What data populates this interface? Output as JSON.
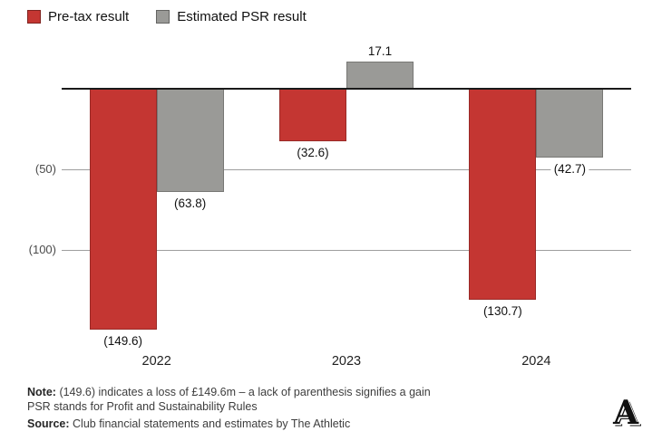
{
  "chart_data": {
    "type": "bar",
    "categories": [
      "2022",
      "2023",
      "2024"
    ],
    "series": [
      {
        "name": "Pre-tax result",
        "color": "#c43632",
        "values": [
          -149.6,
          -32.6,
          -130.7
        ],
        "labels": [
          "(149.6)",
          "(32.6)",
          "(130.7)"
        ]
      },
      {
        "name": "Estimated PSR result",
        "color": "#9a9a97",
        "values": [
          -63.8,
          17.1,
          -42.7
        ],
        "labels": [
          "(63.8)",
          "17.1",
          "(42.7)"
        ]
      }
    ],
    "yticks": [
      {
        "value": -50,
        "label": "(50)"
      },
      {
        "value": -100,
        "label": "(100)"
      }
    ],
    "ylim": [
      -160,
      25
    ],
    "grid": true,
    "legend_position": "top-left",
    "title": "",
    "xlabel": "",
    "ylabel": ""
  },
  "colors": {
    "pretax": "#c43632",
    "psr": "#9a9a97",
    "zero_line": "#1a1a1a",
    "gridline": "#9e9e9e"
  },
  "footer": {
    "note_label": "Note:",
    "note_text": "(149.6) indicates a loss of £149.6m – a lack of parenthesis signifies a gain",
    "note_line2": "PSR stands for Profit and Sustainability Rules",
    "source_label": "Source:",
    "source_text": "Club financial statements and estimates by The Athletic"
  },
  "logo": {
    "letter": "A",
    "name": "The Athletic"
  }
}
